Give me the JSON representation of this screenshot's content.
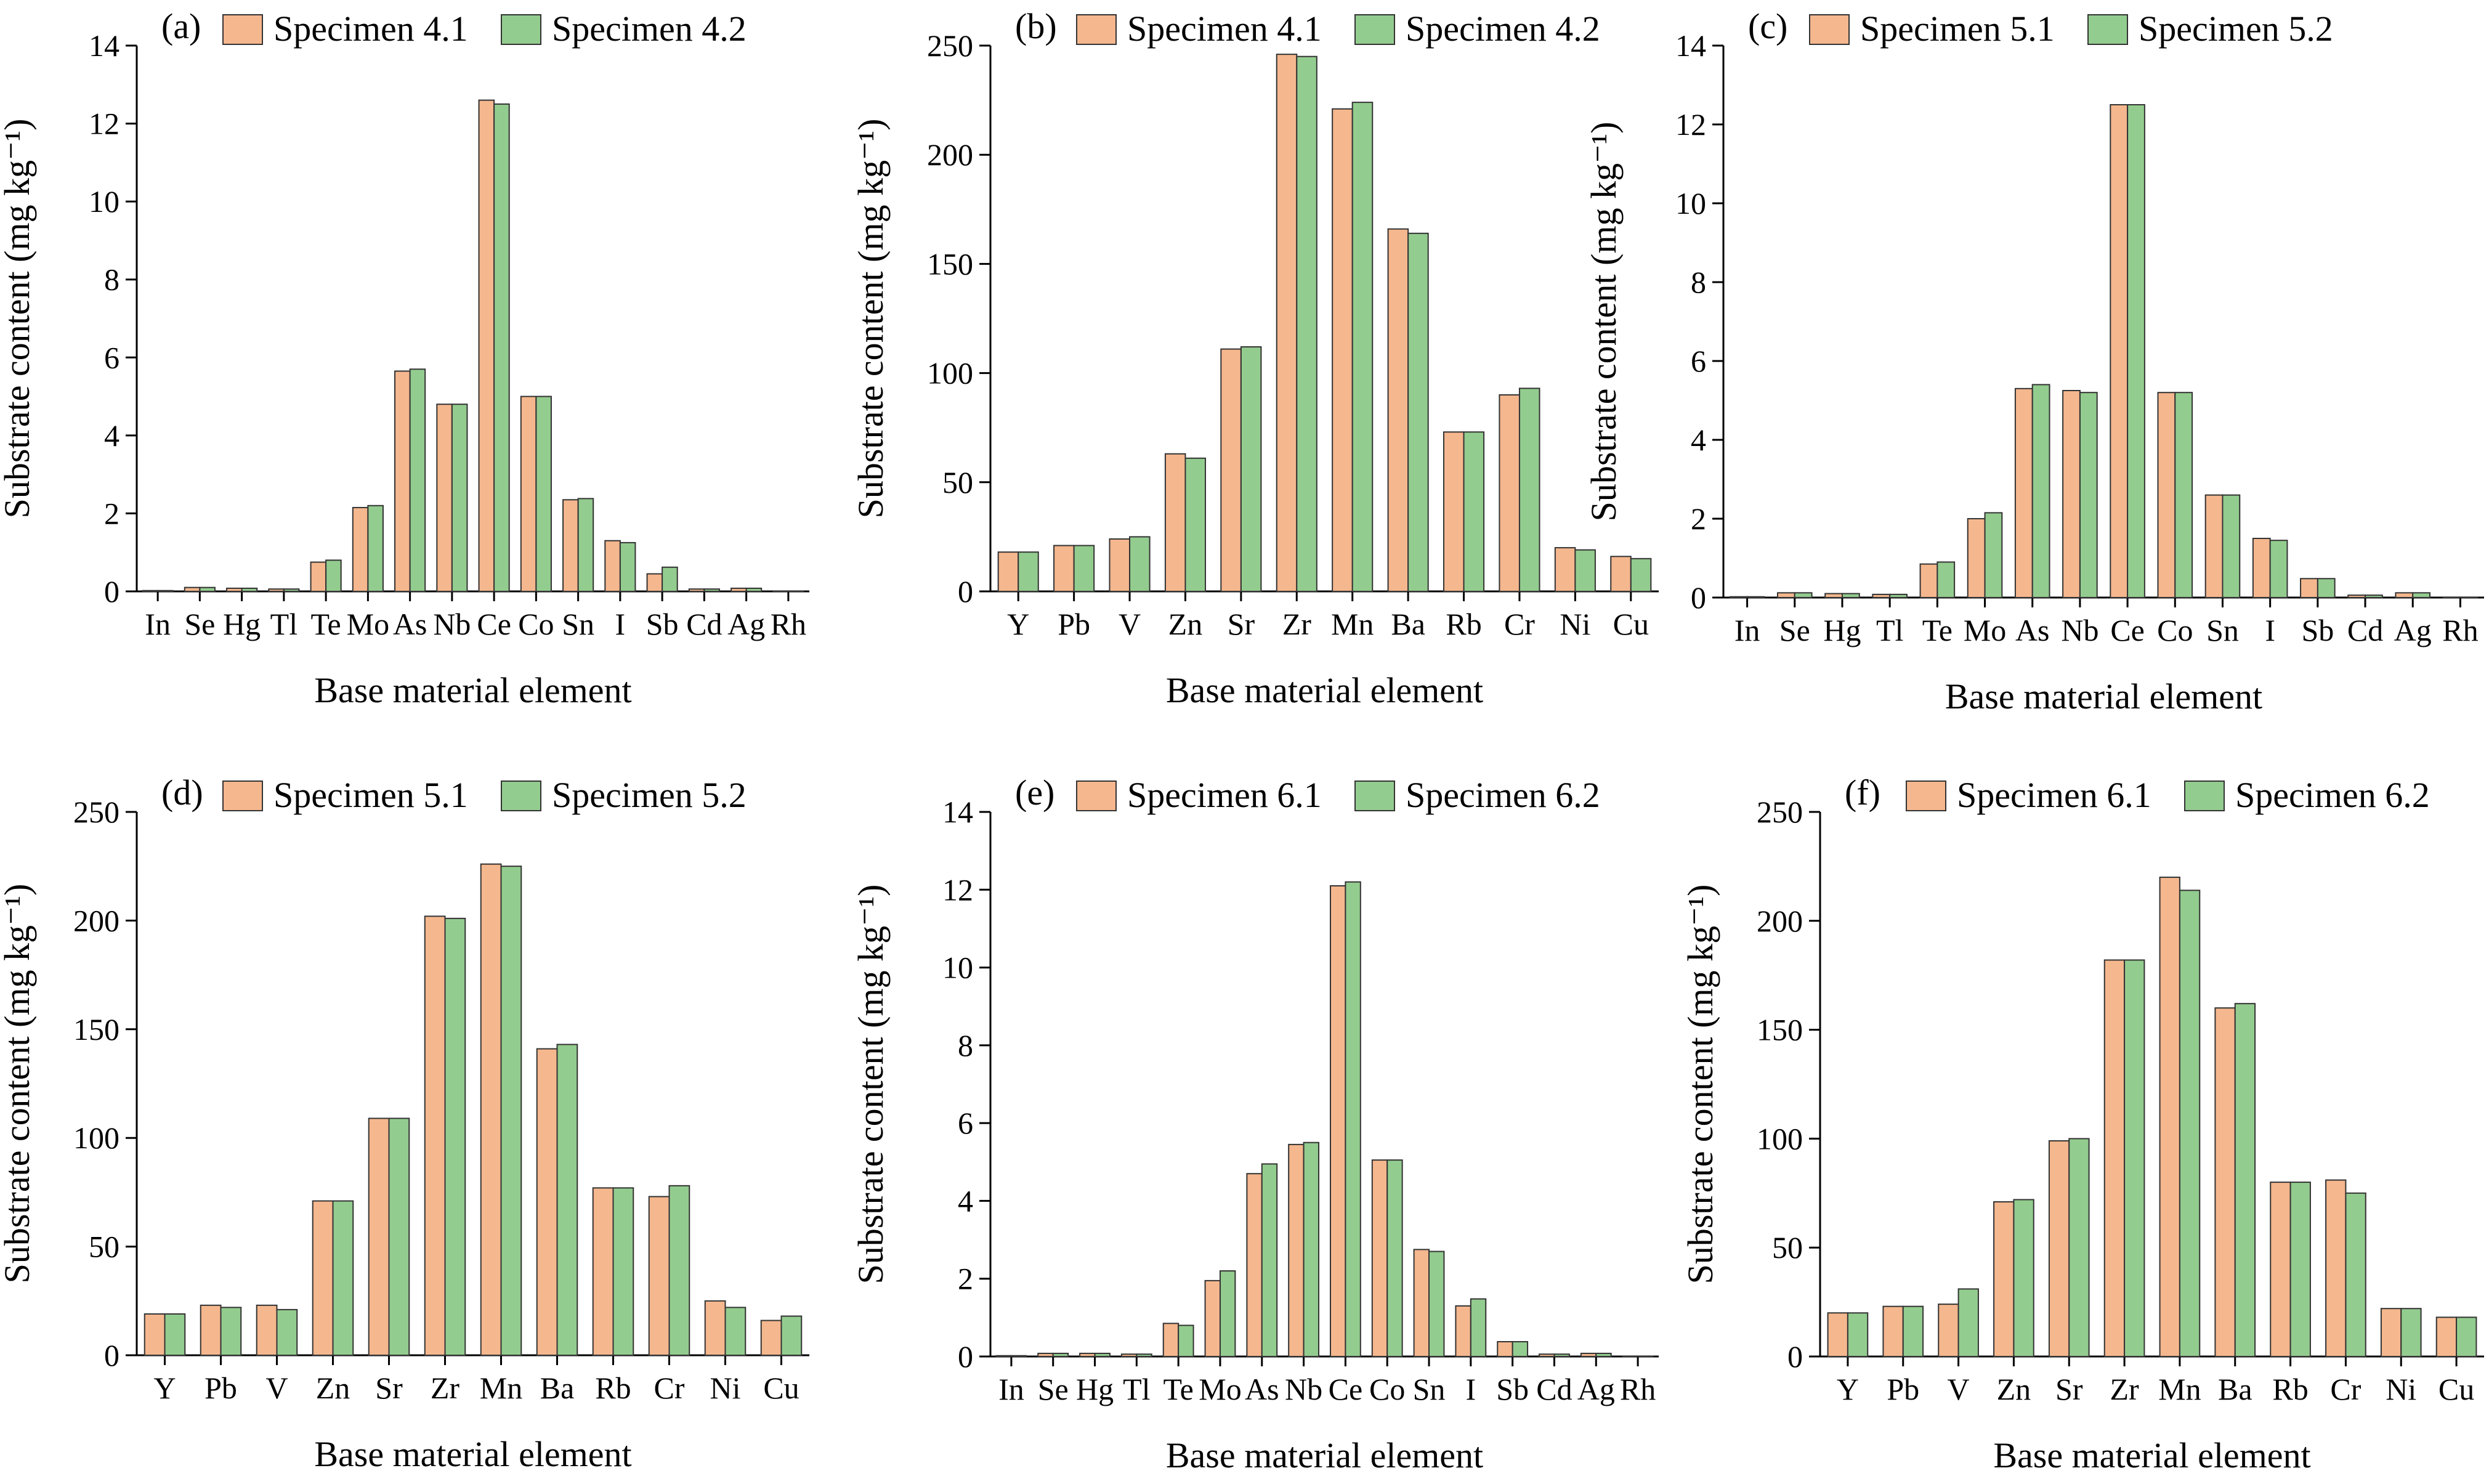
{
  "figure": {
    "y_axis_title": "Substrate content (mg kg⁻¹)",
    "x_axis_title": "Base material element"
  },
  "chart_data": [
    {
      "type": "bar",
      "panel": "(a)",
      "xlabel": "Base material element",
      "ylabel": "Substrate content (mg kg⁻¹)",
      "ylim": [
        0,
        14
      ],
      "yticks": [
        0,
        2,
        4,
        6,
        8,
        10,
        12,
        14
      ],
      "legend_position": "top",
      "grid": false,
      "categories": [
        "In",
        "Se",
        "Hg",
        "Tl",
        "Te",
        "Mo",
        "As",
        "Nb",
        "Ce",
        "Co",
        "Sn",
        "I",
        "Sb",
        "Cd",
        "Ag",
        "Rh"
      ],
      "series": [
        {
          "name": "Specimen 4.1",
          "color": "#f5b78e",
          "values": [
            0.02,
            0.1,
            0.08,
            0.06,
            0.75,
            2.15,
            5.65,
            4.8,
            12.6,
            5.0,
            2.35,
            1.3,
            0.45,
            0.06,
            0.08,
            0.01
          ]
        },
        {
          "name": "Specimen 4.2",
          "color": "#93cc8f",
          "values": [
            0.02,
            0.1,
            0.08,
            0.06,
            0.8,
            2.2,
            5.7,
            4.8,
            12.5,
            5.0,
            2.38,
            1.25,
            0.62,
            0.06,
            0.08,
            0.01
          ]
        }
      ]
    },
    {
      "type": "bar",
      "panel": "(b)",
      "xlabel": "Base material element",
      "ylabel": "Substrate content (mg kg⁻¹)",
      "ylim": [
        0,
        250
      ],
      "yticks": [
        0,
        50,
        100,
        150,
        200,
        250
      ],
      "legend_position": "top",
      "grid": false,
      "categories": [
        "Y",
        "Pb",
        "V",
        "Zn",
        "Sr",
        "Zr",
        "Mn",
        "Ba",
        "Rb",
        "Cr",
        "Ni",
        "Cu"
      ],
      "series": [
        {
          "name": "Specimen 4.1",
          "color": "#f5b78e",
          "values": [
            18,
            21,
            24,
            63,
            111,
            246,
            221,
            166,
            73,
            90,
            20,
            16
          ]
        },
        {
          "name": "Specimen 4.2",
          "color": "#93cc8f",
          "values": [
            18,
            21,
            25,
            61,
            112,
            245,
            224,
            164,
            73,
            93,
            19,
            15
          ]
        }
      ]
    },
    {
      "type": "bar",
      "panel": "(c)",
      "xlabel": "Base material element",
      "ylabel": "Substrate content (mg kg⁻¹)",
      "ylim": [
        0,
        14
      ],
      "yticks": [
        0,
        2,
        4,
        6,
        8,
        10,
        12,
        14
      ],
      "legend_position": "top",
      "grid": false,
      "categories": [
        "In",
        "Se",
        "Hg",
        "Tl",
        "Te",
        "Mo",
        "As",
        "Nb",
        "Ce",
        "Co",
        "Sn",
        "I",
        "Sb",
        "Cd",
        "Ag",
        "Rh"
      ],
      "series": [
        {
          "name": "Specimen 5.1",
          "color": "#f5b78e",
          "values": [
            0.02,
            0.12,
            0.1,
            0.08,
            0.85,
            2.0,
            5.3,
            5.25,
            12.5,
            5.2,
            2.6,
            1.5,
            0.48,
            0.06,
            0.12,
            0.01
          ]
        },
        {
          "name": "Specimen 5.2",
          "color": "#93cc8f",
          "values": [
            0.02,
            0.12,
            0.1,
            0.08,
            0.9,
            2.15,
            5.4,
            5.2,
            12.5,
            5.2,
            2.6,
            1.45,
            0.48,
            0.06,
            0.12,
            0.01
          ]
        }
      ]
    },
    {
      "type": "bar",
      "panel": "(d)",
      "xlabel": "Base material element",
      "ylabel": "Substrate content (mg kg⁻¹)",
      "ylim": [
        0,
        250
      ],
      "yticks": [
        0,
        50,
        100,
        150,
        200,
        250
      ],
      "legend_position": "top",
      "grid": false,
      "categories": [
        "Y",
        "Pb",
        "V",
        "Zn",
        "Sr",
        "Zr",
        "Mn",
        "Ba",
        "Rb",
        "Cr",
        "Ni",
        "Cu"
      ],
      "series": [
        {
          "name": "Specimen 5.1",
          "color": "#f5b78e",
          "values": [
            19,
            23,
            23,
            71,
            109,
            202,
            226,
            141,
            77,
            73,
            25,
            16
          ]
        },
        {
          "name": "Specimen 5.2",
          "color": "#93cc8f",
          "values": [
            19,
            22,
            21,
            71,
            109,
            201,
            225,
            143,
            77,
            78,
            22,
            18
          ]
        }
      ]
    },
    {
      "type": "bar",
      "panel": "(e)",
      "xlabel": "Base material element",
      "ylabel": "Substrate content (mg kg⁻¹)",
      "ylim": [
        0,
        14
      ],
      "yticks": [
        0,
        2,
        4,
        6,
        8,
        10,
        12,
        14
      ],
      "legend_position": "top",
      "grid": false,
      "categories": [
        "In",
        "Se",
        "Hg",
        "Tl",
        "Te",
        "Mo",
        "As",
        "Nb",
        "Ce",
        "Co",
        "Sn",
        "I",
        "Sb",
        "Cd",
        "Ag",
        "Rh"
      ],
      "series": [
        {
          "name": "Specimen 6.1",
          "color": "#f5b78e",
          "values": [
            0.02,
            0.08,
            0.08,
            0.06,
            0.85,
            1.95,
            4.7,
            5.45,
            12.1,
            5.05,
            2.75,
            1.3,
            0.38,
            0.06,
            0.08,
            0.01
          ]
        },
        {
          "name": "Specimen 6.2",
          "color": "#93cc8f",
          "values": [
            0.02,
            0.08,
            0.08,
            0.06,
            0.8,
            2.2,
            4.95,
            5.5,
            12.2,
            5.05,
            2.7,
            1.48,
            0.38,
            0.06,
            0.08,
            0.01
          ]
        }
      ]
    },
    {
      "type": "bar",
      "panel": "(f)",
      "xlabel": "Base material element",
      "ylabel": "Substrate content (mg kg⁻¹)",
      "ylim": [
        0,
        250
      ],
      "yticks": [
        0,
        50,
        100,
        150,
        200,
        250
      ],
      "legend_position": "top",
      "grid": false,
      "categories": [
        "Y",
        "Pb",
        "V",
        "Zn",
        "Sr",
        "Zr",
        "Mn",
        "Ba",
        "Rb",
        "Cr",
        "Ni",
        "Cu"
      ],
      "series": [
        {
          "name": "Specimen 6.1",
          "color": "#f5b78e",
          "values": [
            20,
            23,
            24,
            71,
            99,
            182,
            220,
            160,
            80,
            81,
            22,
            18
          ]
        },
        {
          "name": "Specimen 6.2",
          "color": "#93cc8f",
          "values": [
            20,
            23,
            31,
            72,
            100,
            182,
            214,
            162,
            80,
            75,
            22,
            18
          ]
        }
      ]
    }
  ]
}
